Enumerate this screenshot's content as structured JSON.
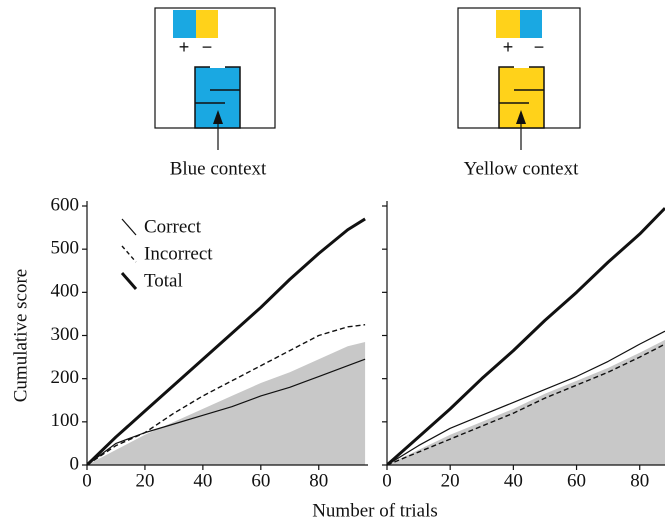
{
  "contexts": [
    {
      "label": "Blue context",
      "plus": "+",
      "minus": "−"
    },
    {
      "label": "Yellow context",
      "plus": "+",
      "minus": "−"
    }
  ],
  "x_label": "Number of trials",
  "chart_data": [
    {
      "type": "line",
      "ylabel": "Cumulative score",
      "x": [
        0,
        10,
        20,
        30,
        40,
        50,
        60,
        70,
        80,
        90,
        96
      ],
      "series": [
        {
          "color": "#c8c8c8",
          "fill": true,
          "values": [
            0,
            35,
            70,
            100,
            130,
            160,
            190,
            215,
            245,
            275,
            285
          ]
        },
        {
          "name": "Correct",
          "color": "#111111",
          "line_width": 1.2,
          "values": [
            0,
            50,
            75,
            95,
            115,
            135,
            160,
            180,
            205,
            230,
            245
          ]
        },
        {
          "name": "Incorrect",
          "color": "#111111",
          "line_width": 1.4,
          "line_style": "dashed",
          "values": [
            0,
            45,
            75,
            120,
            160,
            195,
            230,
            265,
            300,
            320,
            325
          ]
        },
        {
          "name": "Total",
          "color": "#111111",
          "line_width": 3,
          "values": [
            0,
            65,
            125,
            185,
            245,
            305,
            365,
            430,
            490,
            545,
            570
          ]
        }
      ],
      "xlim": [
        0,
        97
      ],
      "ylim": [
        0,
        600
      ],
      "xticks": [
        0,
        20,
        40,
        60,
        80
      ],
      "yticks": [
        0,
        100,
        200,
        300,
        400,
        500,
        600
      ],
      "show_ytick_labels": true,
      "legend": "upper left"
    },
    {
      "type": "line",
      "x": [
        0,
        10,
        20,
        30,
        40,
        50,
        60,
        70,
        80,
        88
      ],
      "series": [
        {
          "color": "#c8c8c8",
          "fill": true,
          "values": [
            0,
            35,
            70,
            100,
            130,
            165,
            195,
            225,
            260,
            290
          ]
        },
        {
          "color": "#111111",
          "line_width": 1.2,
          "values": [
            0,
            45,
            85,
            115,
            145,
            175,
            205,
            240,
            280,
            310
          ]
        },
        {
          "color": "#111111",
          "line_width": 1.4,
          "line_style": "dashed",
          "values": [
            0,
            30,
            60,
            90,
            120,
            155,
            185,
            215,
            250,
            280
          ]
        },
        {
          "color": "#111111",
          "line_width": 3,
          "values": [
            0,
            65,
            130,
            200,
            265,
            335,
            400,
            470,
            535,
            595
          ]
        }
      ],
      "xlim": [
        0,
        88
      ],
      "ylim": [
        0,
        600
      ],
      "xticks": [
        0,
        20,
        40,
        60,
        80
      ],
      "yticks": [
        0,
        100,
        200,
        300,
        400,
        500,
        600
      ],
      "show_ytick_labels": false
    }
  ]
}
